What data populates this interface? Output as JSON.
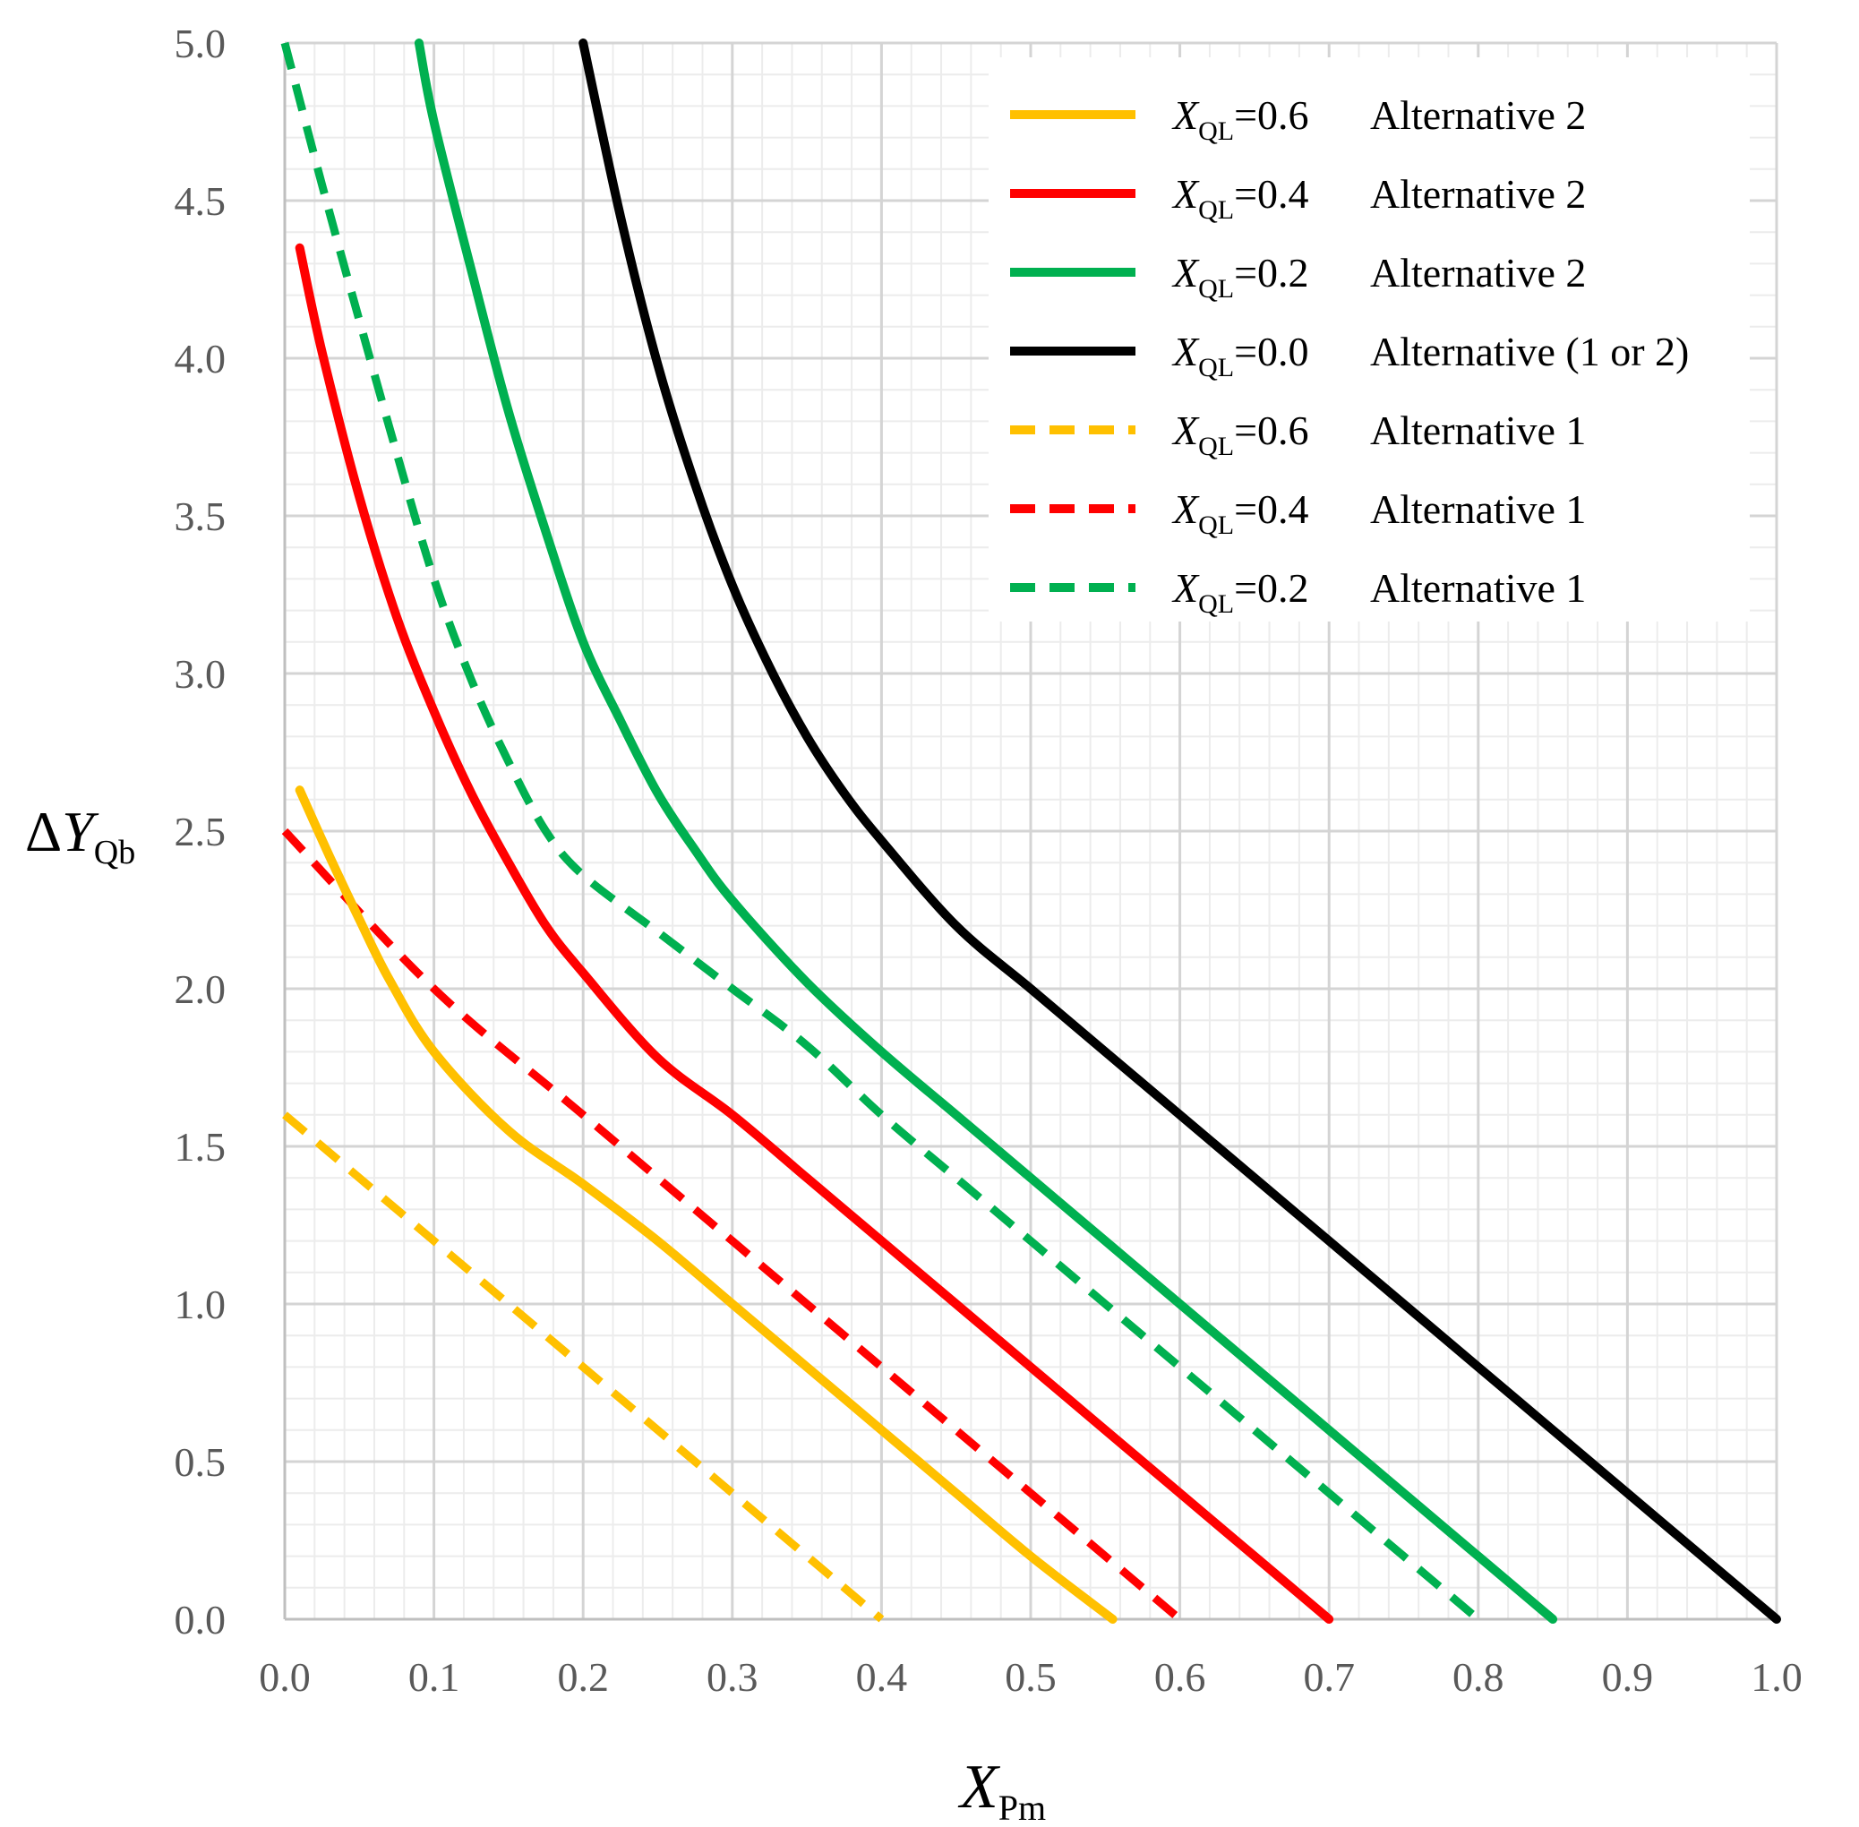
{
  "chart_data": {
    "type": "line",
    "title": "",
    "xlabel": {
      "main": "X",
      "sub": "Pm"
    },
    "ylabel": {
      "prefix": "Δ",
      "main": "Y",
      "sub": "Qb"
    },
    "xlim": [
      0,
      1
    ],
    "ylim": [
      0,
      5
    ],
    "grid": true,
    "legend_position": "top-right",
    "x_ticks": [
      "0.0",
      "0.1",
      "0.2",
      "0.3",
      "0.4",
      "0.5",
      "0.6",
      "0.7",
      "0.8",
      "0.9",
      "1.0"
    ],
    "y_ticks": [
      "0.0",
      "0.5",
      "1.0",
      "1.5",
      "2.0",
      "2.5",
      "3.0",
      "3.5",
      "4.0",
      "4.5",
      "5.0"
    ],
    "series": [
      {
        "name": "X_QL=0.6 Alternative 2",
        "label_var": "X",
        "label_sub": "QL",
        "label_value": "=0.6",
        "label_alt": "Alternative 2",
        "color": "#FFC000",
        "dash": false,
        "x": [
          0.01,
          0.03,
          0.05,
          0.07,
          0.1,
          0.15,
          0.2,
          0.25,
          0.3,
          0.35,
          0.4,
          0.45,
          0.5,
          0.555
        ],
        "y": [
          2.63,
          2.42,
          2.22,
          2.03,
          1.8,
          1.55,
          1.38,
          1.2,
          1.0,
          0.8,
          0.6,
          0.4,
          0.2,
          0.0
        ]
      },
      {
        "name": "X_QL=0.4 Alternative 2",
        "label_var": "X",
        "label_sub": "QL",
        "label_value": "=0.4",
        "label_alt": "Alternative 2",
        "color": "#FF0000",
        "dash": false,
        "x": [
          0.01,
          0.025,
          0.05,
          0.075,
          0.1,
          0.125,
          0.15,
          0.175,
          0.2,
          0.25,
          0.3,
          0.35,
          0.4,
          0.45,
          0.5,
          0.55,
          0.6,
          0.65,
          0.7
        ],
        "y": [
          4.35,
          4.02,
          3.56,
          3.18,
          2.88,
          2.62,
          2.4,
          2.2,
          2.05,
          1.78,
          1.6,
          1.4,
          1.2,
          1.0,
          0.8,
          0.6,
          0.4,
          0.2,
          0.0
        ]
      },
      {
        "name": "X_QL=0.2 Alternative 2",
        "label_var": "X",
        "label_sub": "QL",
        "label_value": "=0.2",
        "label_alt": "Alternative 2",
        "color": "#00B050",
        "dash": false,
        "x": [
          0.09,
          0.1,
          0.125,
          0.15,
          0.175,
          0.2,
          0.225,
          0.25,
          0.275,
          0.3,
          0.35,
          0.4,
          0.45,
          0.5,
          0.55,
          0.6,
          0.65,
          0.7,
          0.75,
          0.8,
          0.85
        ],
        "y": [
          5.0,
          4.75,
          4.28,
          3.83,
          3.45,
          3.1,
          2.85,
          2.62,
          2.44,
          2.28,
          2.02,
          1.8,
          1.6,
          1.4,
          1.2,
          1.0,
          0.8,
          0.6,
          0.4,
          0.2,
          0.0
        ]
      },
      {
        "name": "X_QL=0.0 Alternative (1 or 2)",
        "label_var": "X",
        "label_sub": "QL",
        "label_value": "=0.0",
        "label_alt": "Alternative (1 or 2)",
        "color": "#000000",
        "dash": false,
        "x": [
          0.2,
          0.225,
          0.25,
          0.275,
          0.3,
          0.325,
          0.35,
          0.375,
          0.4,
          0.45,
          0.5,
          0.55,
          0.6,
          0.65,
          0.7,
          0.75,
          0.8,
          0.85,
          0.9,
          0.95,
          1.0
        ],
        "y": [
          5.0,
          4.45,
          3.98,
          3.6,
          3.28,
          3.02,
          2.8,
          2.62,
          2.47,
          2.2,
          2.0,
          1.8,
          1.6,
          1.4,
          1.2,
          1.0,
          0.8,
          0.6,
          0.4,
          0.2,
          0.0
        ]
      },
      {
        "name": "X_QL=0.6 Alternative 1",
        "label_var": "X",
        "label_sub": "QL",
        "label_value": "=0.6",
        "label_alt": "Alternative 1",
        "color": "#FFC000",
        "dash": true,
        "x": [
          0.0,
          0.1,
          0.2,
          0.3,
          0.4
        ],
        "y": [
          1.6,
          1.2,
          0.8,
          0.4,
          0.0
        ]
      },
      {
        "name": "X_QL=0.4 Alternative 1",
        "label_var": "X",
        "label_sub": "QL",
        "label_value": "=0.4",
        "label_alt": "Alternative 1",
        "color": "#FF0000",
        "dash": true,
        "x": [
          0.0,
          0.1,
          0.2,
          0.3,
          0.4,
          0.5,
          0.6
        ],
        "y": [
          2.5,
          2.0,
          1.6,
          1.2,
          0.8,
          0.4,
          0.0
        ]
      },
      {
        "name": "X_QL=0.2 Alternative 1",
        "label_var": "X",
        "label_sub": "QL",
        "label_value": "=0.2",
        "label_alt": "Alternative 1",
        "color": "#00B050",
        "dash": true,
        "x": [
          0.0,
          0.025,
          0.05,
          0.075,
          0.1,
          0.125,
          0.15,
          0.175,
          0.2,
          0.25,
          0.3,
          0.35,
          0.4,
          0.45,
          0.5,
          0.55,
          0.6,
          0.65,
          0.7,
          0.75,
          0.8
        ],
        "y": [
          5.0,
          4.55,
          4.12,
          3.7,
          3.3,
          2.98,
          2.72,
          2.5,
          2.36,
          2.18,
          2.0,
          1.82,
          1.6,
          1.4,
          1.2,
          1.0,
          0.8,
          0.6,
          0.4,
          0.2,
          0.0
        ]
      }
    ]
  }
}
